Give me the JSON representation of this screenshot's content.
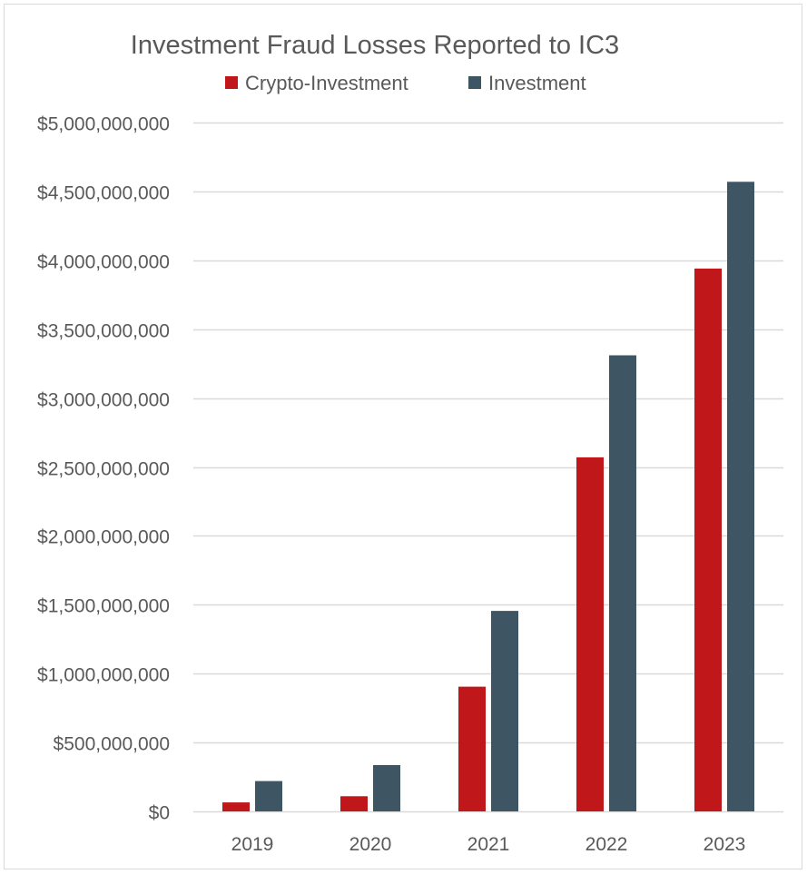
{
  "chart_data": {
    "type": "bar",
    "title": "Investment Fraud Losses Reported to IC3",
    "categories": [
      "2019",
      "2020",
      "2021",
      "2022",
      "2023"
    ],
    "series": [
      {
        "name": "Crypto-Investment",
        "color": "#c0171b",
        "values": [
          65000000,
          110000000,
          905000000,
          2570000000,
          3940000000
        ]
      },
      {
        "name": "Investment",
        "color": "#3e5563",
        "values": [
          220000000,
          336000000,
          1455000000,
          3310000000,
          4570000000
        ]
      }
    ],
    "ylim": [
      0,
      5000000000
    ],
    "yticks": [
      0,
      500000000,
      1000000000,
      1500000000,
      2000000000,
      2500000000,
      3000000000,
      3500000000,
      4000000000,
      4500000000,
      5000000000
    ],
    "ytick_labels": [
      "$0",
      "$500,000,000",
      "$1,000,000,000",
      "$1,500,000,000",
      "$2,000,000,000",
      "$2,500,000,000",
      "$3,000,000,000",
      "$3,500,000,000",
      "$4,000,000,000",
      "$4,500,000,000",
      "$5,000,000,000"
    ],
    "xlabel": "",
    "ylabel": "",
    "grid": true,
    "legend_position": "top-center",
    "gridline_color": "#d9d9d9",
    "text_color": "#595959"
  }
}
